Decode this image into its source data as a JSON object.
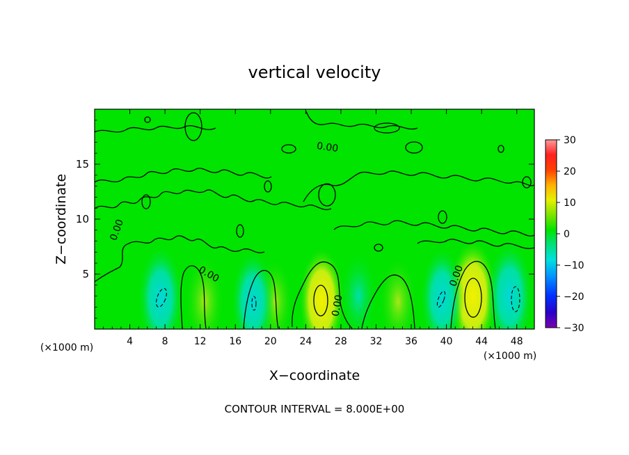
{
  "chart_data": {
    "type": "heatmap",
    "title": "vertical velocity",
    "xlabel": "X−coordinate",
    "ylabel": "Z−coordinate",
    "x_unit_left": "(×1000 m)",
    "x_unit_right": "(×1000 m)",
    "xlim": [
      0,
      50
    ],
    "ylim": [
      0,
      20
    ],
    "x_ticks": [
      4,
      8,
      12,
      16,
      20,
      24,
      28,
      32,
      36,
      40,
      44,
      48
    ],
    "y_ticks": [
      5,
      10,
      15
    ],
    "colorbar": {
      "min": -30,
      "max": 30,
      "ticks": [
        30,
        20,
        10,
        0,
        -10,
        -20,
        -30
      ],
      "tick_labels": [
        "30",
        "20",
        "10",
        "0",
        "−10",
        "−20",
        "−30"
      ]
    },
    "contour_interval_text": "CONTOUR INTERVAL = 8.000E+00",
    "contour_labels": [
      "0.00",
      "0.00",
      "0.00",
      "0.00",
      "0.00"
    ],
    "features": [
      {
        "kind": "updraft",
        "x": 25.8,
        "z": 2.6,
        "value": 9
      },
      {
        "kind": "updraft",
        "x": 43.0,
        "z": 3.0,
        "value": 11
      },
      {
        "kind": "updraft",
        "x": 12.5,
        "z": 2.5,
        "value": 6
      },
      {
        "kind": "updraft",
        "x": 34.5,
        "z": 2.5,
        "value": 5
      },
      {
        "kind": "updraft",
        "x": 20.5,
        "z": 2.5,
        "value": 4
      },
      {
        "kind": "downdraft",
        "x": 7.5,
        "z": 2.8,
        "value": -9
      },
      {
        "kind": "downdraft",
        "x": 18.0,
        "z": 2.5,
        "value": -8
      },
      {
        "kind": "downdraft",
        "x": 39.5,
        "z": 2.8,
        "value": -8
      },
      {
        "kind": "downdraft",
        "x": 47.2,
        "z": 3.0,
        "value": -10
      },
      {
        "kind": "downdraft",
        "x": 30.0,
        "z": 3.0,
        "value": -5
      }
    ]
  }
}
